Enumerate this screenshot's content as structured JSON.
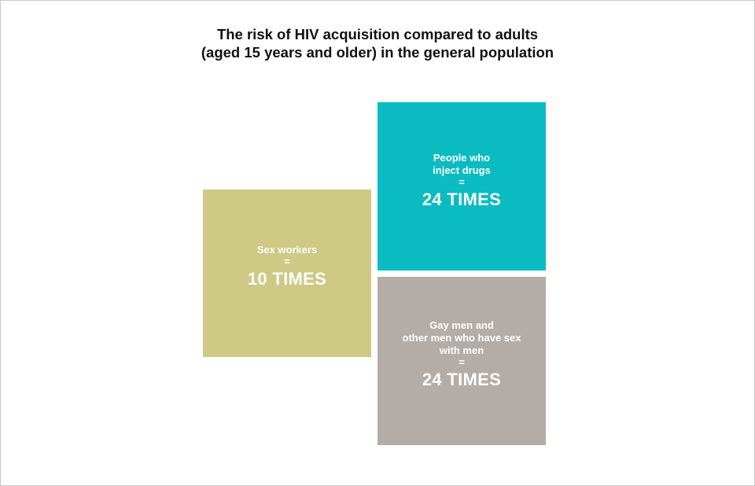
{
  "title": {
    "line1": "The risk of HIV acquisition compared to adults",
    "line2": "(aged 15 years and older) in the general population"
  },
  "boxes": [
    {
      "label": "Sex workers",
      "eq": "=",
      "value": "10 TIMES",
      "color": "#cec984"
    },
    {
      "label": "People who\ninject drugs",
      "eq": "=",
      "value": "24 TIMES",
      "color": "#0abcc2"
    },
    {
      "label": "Gay men and\nother men who have sex\nwith men",
      "eq": "=",
      "value": "24 TIMES",
      "color": "#b4aca6"
    }
  ]
}
